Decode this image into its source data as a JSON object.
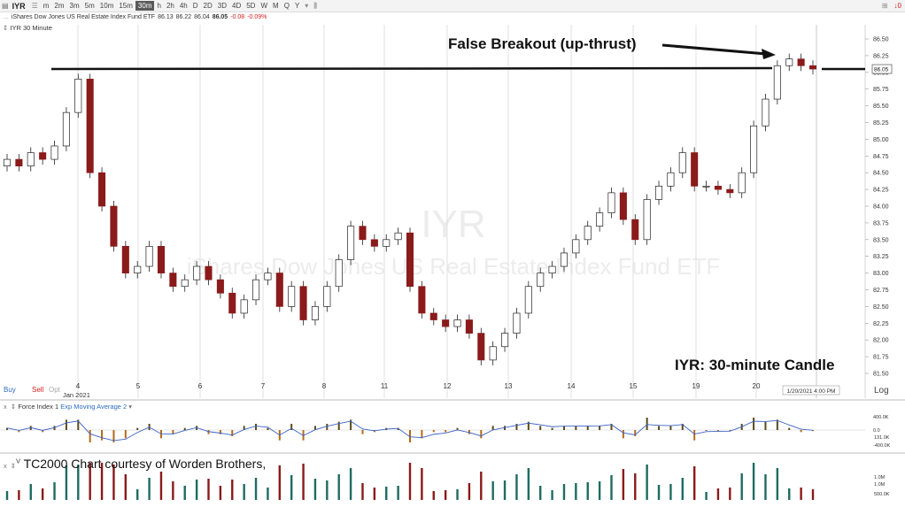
{
  "toolbar": {
    "symbol": "IYR",
    "timeframes": [
      "m",
      "2m",
      "3m",
      "5m",
      "10m",
      "15m",
      "30m",
      "h",
      "2h",
      "4h",
      "D",
      "2D",
      "3D",
      "4D",
      "5D",
      "W",
      "M",
      "Q",
      "Y"
    ],
    "active_timeframe": "30m",
    "right_tag": "↓0"
  },
  "quote": {
    "name": "iShares Dow Jones US Real Estate Index Fund ETF",
    "open": "86.13",
    "high": "86.22",
    "low": "86.04",
    "last": "86.05",
    "change": "-0.08",
    "change_pct": "-0.09%"
  },
  "chart_label": "IYR 30 Minute",
  "watermark": {
    "symbol": "IYR",
    "name": "iShares Dow Jones US Real Estate Index Fund ETF"
  },
  "annotations": {
    "breakout": "False Breakout (up-thrust)",
    "caption": "IYR:  30-minute Candle",
    "courtesy": "TC2000 Chart courtesy of Worden Brothers,"
  },
  "trade_buttons": {
    "buy": "Buy",
    "sell": "Sell",
    "opt": "Opt"
  },
  "price_axis": {
    "ticks": [
      "86.50",
      "86.25",
      "86.00",
      "85.75",
      "85.50",
      "85.25",
      "85.00",
      "84.75",
      "84.50",
      "84.25",
      "84.00",
      "83.75",
      "83.50",
      "83.25",
      "83.00",
      "82.75",
      "82.50",
      "82.25",
      "82.00",
      "81.75",
      "81.50"
    ],
    "last_price": "86.05",
    "scale": "Log"
  },
  "date_axis": {
    "labels": [
      "4",
      "5",
      "6",
      "7",
      "8",
      "11",
      "12",
      "13",
      "14",
      "15",
      "19",
      "20"
    ],
    "month_label": "Jan 2021",
    "cursor_time": "1/20/2021 4:00 PM"
  },
  "force_panel": {
    "indicator": "Force Index 1",
    "overlay": "Exp Moving Average 2",
    "ticks": [
      "400.0K",
      "0.0",
      "-400.0K"
    ],
    "last_value": "131.0K"
  },
  "volume_panel": {
    "indicator": "V",
    "ticks": [
      "1.0M",
      "500.0K"
    ],
    "last_value": "1.0M"
  },
  "chart_data": {
    "type": "candlestick",
    "title": "IYR 30 Minute",
    "ylim": [
      81.5,
      86.5
    ],
    "scale": "log",
    "resistance_level": 86.0,
    "close_price_series": [
      84.7,
      84.6,
      84.8,
      84.7,
      84.9,
      85.4,
      85.9,
      84.5,
      84.0,
      83.4,
      83.0,
      83.1,
      83.4,
      83.0,
      82.8,
      82.9,
      83.1,
      82.9,
      82.7,
      82.4,
      82.6,
      82.9,
      83.0,
      82.5,
      82.8,
      82.3,
      82.5,
      82.8,
      83.2,
      83.7,
      83.5,
      83.4,
      83.5,
      83.6,
      82.8,
      82.4,
      82.3,
      82.2,
      82.3,
      82.1,
      81.7,
      81.9,
      82.1,
      82.4,
      82.8,
      83.0,
      83.1,
      83.3,
      83.5,
      83.7,
      83.9,
      84.2,
      83.8,
      83.5,
      84.1,
      84.3,
      84.5,
      84.8,
      84.3,
      84.3,
      84.25,
      84.2,
      84.5,
      85.2,
      85.6,
      86.1,
      86.2,
      86.1,
      86.05
    ],
    "notable_bars": {
      "jan4_high": 85.95,
      "jan12_low": 81.55,
      "jan19_high": 85.1,
      "jan20_high": 86.35
    }
  },
  "colors": {
    "up": "#ffffff",
    "down": "#8b1a1a",
    "volume_up": "#1f6b61",
    "volume_down": "#8b1a1a",
    "last_price_tag": "#d32020"
  }
}
